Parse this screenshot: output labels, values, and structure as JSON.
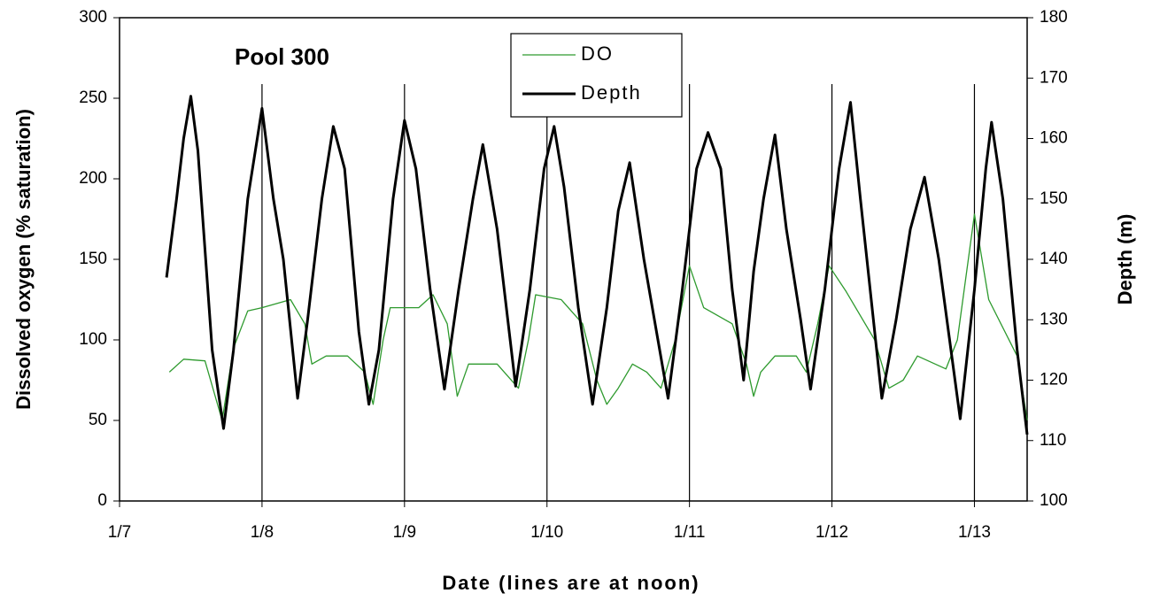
{
  "chart_data": {
    "type": "line",
    "annotation": "Pool 300",
    "x_label": "Date (lines are at noon)",
    "y_label": "Dissolved oxygen (% saturation)",
    "y2_label": "Depth (m)",
    "xlim": [
      7,
      13.37
    ],
    "xticks": [
      {
        "value": 7,
        "label": "1/7"
      },
      {
        "value": 8,
        "label": "1/8"
      },
      {
        "value": 9,
        "label": "1/9"
      },
      {
        "value": 10,
        "label": "1/10"
      },
      {
        "value": 11,
        "label": "1/11"
      },
      {
        "value": 12,
        "label": "1/12"
      },
      {
        "value": 13,
        "label": "1/13"
      }
    ],
    "ylim": [
      0,
      300
    ],
    "yticks": [
      0,
      50,
      100,
      150,
      200,
      250,
      300
    ],
    "y2lim": [
      100,
      180
    ],
    "y2ticks": [
      100,
      110,
      120,
      130,
      140,
      150,
      160,
      170,
      180
    ],
    "grid": "x",
    "legend": "top",
    "series": [
      {
        "name": "DO",
        "color": "#2e9a2e",
        "axis": "y",
        "x": [
          7.35,
          7.45,
          7.6,
          7.72,
          7.8,
          7.9,
          8.0,
          8.2,
          8.3,
          8.35,
          8.45,
          8.6,
          8.72,
          8.78,
          8.85,
          8.9,
          9.1,
          9.2,
          9.3,
          9.37,
          9.45,
          9.65,
          9.8,
          9.87,
          9.92,
          10.1,
          10.25,
          10.35,
          10.42,
          10.5,
          10.6,
          10.7,
          10.8,
          10.9,
          11.0,
          11.1,
          11.3,
          11.4,
          11.45,
          11.5,
          11.6,
          11.75,
          11.82,
          11.9,
          11.98,
          12.1,
          12.3,
          12.4,
          12.5,
          12.6,
          12.8,
          12.88,
          13.0,
          13.1,
          13.3,
          13.37
        ],
        "values": [
          80,
          88,
          87,
          50,
          95,
          118,
          120,
          125,
          110,
          85,
          90,
          90,
          80,
          60,
          100,
          120,
          120,
          128,
          110,
          65,
          85,
          85,
          70,
          100,
          128,
          125,
          110,
          75,
          60,
          70,
          85,
          80,
          70,
          100,
          146,
          120,
          110,
          85,
          65,
          80,
          90,
          90,
          80,
          110,
          146,
          130,
          100,
          70,
          75,
          90,
          82,
          100,
          178,
          125,
          90,
          50
        ]
      },
      {
        "name": "Depth",
        "color": "#000000",
        "axis": "y2",
        "x": [
          7.33,
          7.4,
          7.45,
          7.5,
          7.55,
          7.65,
          7.73,
          7.8,
          7.9,
          8.0,
          8.08,
          8.15,
          8.25,
          8.32,
          8.42,
          8.5,
          8.58,
          8.68,
          8.75,
          8.82,
          8.92,
          9.0,
          9.08,
          9.18,
          9.28,
          9.38,
          9.48,
          9.55,
          9.65,
          9.78,
          9.88,
          9.98,
          10.05,
          10.12,
          10.22,
          10.32,
          10.42,
          10.5,
          10.58,
          10.68,
          10.85,
          10.95,
          11.05,
          11.13,
          11.22,
          11.3,
          11.38,
          11.45,
          11.52,
          11.6,
          11.68,
          11.78,
          11.85,
          11.95,
          12.05,
          12.13,
          12.2,
          12.35,
          12.45,
          12.55,
          12.65,
          12.75,
          12.9,
          13.0,
          13.08,
          13.12,
          13.2,
          13.3,
          13.37
        ],
        "values": [
          137,
          150,
          160,
          167,
          158,
          125,
          112,
          125,
          150,
          165,
          150,
          140,
          117,
          130,
          150,
          162,
          155,
          128,
          116,
          125,
          150,
          163,
          155,
          135,
          118.5,
          135,
          150,
          159,
          145,
          119,
          135,
          155,
          162,
          152,
          132,
          116,
          132,
          148,
          156,
          140,
          117,
          135,
          155,
          161,
          155,
          135,
          120,
          138,
          150,
          160.6,
          145,
          130,
          118.5,
          135,
          155,
          166,
          150,
          117,
          130,
          145,
          153.6,
          140,
          113.6,
          135,
          155,
          162.7,
          150,
          125,
          111
        ]
      }
    ]
  }
}
